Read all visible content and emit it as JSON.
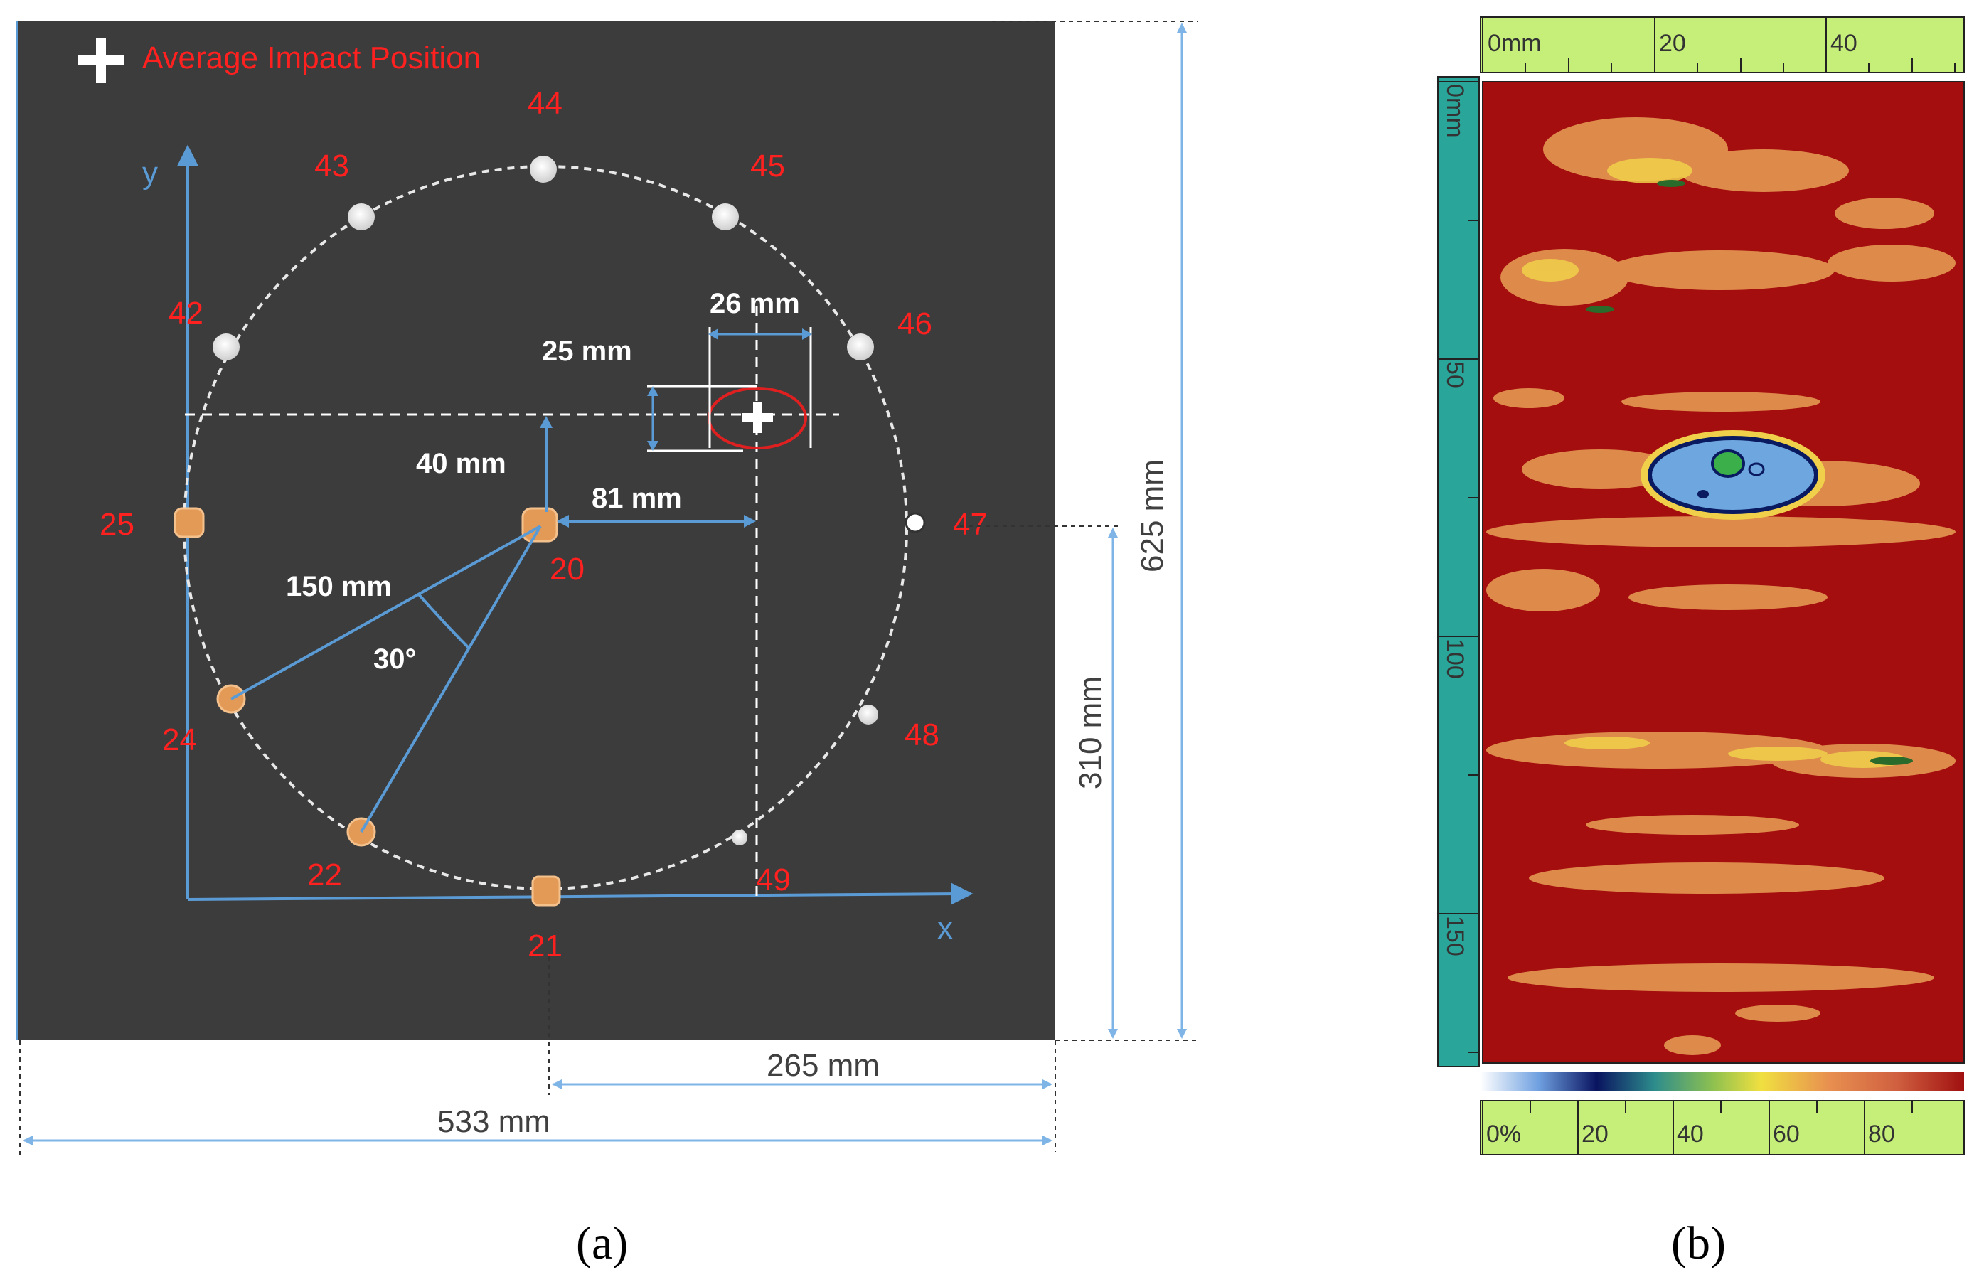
{
  "panel_a": {
    "legend_text": "Average Impact Position",
    "axis_x": "x",
    "axis_y": "y",
    "hole_labels": [
      {
        "id": "44",
        "kind": "white"
      },
      {
        "id": "43",
        "kind": "white"
      },
      {
        "id": "45",
        "kind": "white"
      },
      {
        "id": "42",
        "kind": "white"
      },
      {
        "id": "46",
        "kind": "white"
      },
      {
        "id": "25",
        "kind": "orange"
      },
      {
        "id": "47",
        "kind": "white"
      },
      {
        "id": "20",
        "kind": "orange"
      },
      {
        "id": "24",
        "kind": "orange"
      },
      {
        "id": "48",
        "kind": "white"
      },
      {
        "id": "22",
        "kind": "orange"
      },
      {
        "id": "49",
        "kind": "white"
      },
      {
        "id": "21",
        "kind": "orange"
      }
    ],
    "dimensions": {
      "d26": "26 mm",
      "d25": "25 mm",
      "d40": "40 mm",
      "d81": "81 mm",
      "d150": "150 mm",
      "angle": "30°",
      "d625": "625 mm",
      "d310": "310 mm",
      "d265": "265 mm",
      "d533": "533 mm"
    },
    "caption": "(a)"
  },
  "panel_b": {
    "top_scale_labels": [
      "0mm",
      "20",
      "40"
    ],
    "left_scale_labels": [
      "0mm",
      "50",
      "100",
      "150"
    ],
    "bottom_scale_labels": [
      "0%",
      "20",
      "40",
      "60",
      "80"
    ],
    "caption": "(b)"
  },
  "colors": {
    "plate": "#3c3c3c",
    "accent_blue": "#5b9bd5",
    "label_red": "#ff2020",
    "cscan_bg": "#a40e0e",
    "scale_green": "#c6ef7a",
    "scale_teal": "#2aa59a"
  }
}
